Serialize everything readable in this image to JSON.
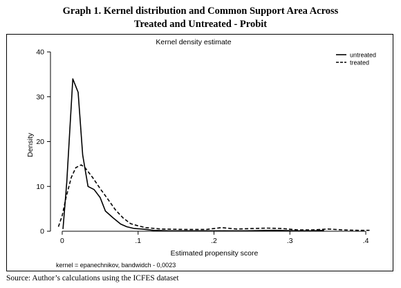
{
  "caption": {
    "line1": "Graph 1. Kernel distribution and Common Support Area Across",
    "line2": "Treated and Untreated - Probit"
  },
  "source": "Source: Author’s calculations using the ICFES dataset",
  "chart_data": {
    "type": "line",
    "title": "Kernel density estimate",
    "xlabel": "Estimated propensity score",
    "ylabel": "Density",
    "note": "kernel = epanechnikov, bandwidch - 0,0023",
    "xlim": [
      -0.01,
      0.42
    ],
    "ylim": [
      0,
      40
    ],
    "xticks": [
      0,
      0.1,
      0.2,
      0.3,
      0.4
    ],
    "xtick_labels": [
      "0",
      ".1",
      ".2",
      ".3",
      ".4"
    ],
    "yticks": [
      0,
      10,
      20,
      30,
      40
    ],
    "ytick_labels": [
      "0",
      "10",
      "20",
      "30",
      "40"
    ],
    "grid": false,
    "legend_position": "top-right",
    "series": [
      {
        "name": "untreated",
        "style": "solid",
        "color": "#000000",
        "x": [
          0.001,
          0.006,
          0.014,
          0.021,
          0.027,
          0.034,
          0.042,
          0.05,
          0.057,
          0.067,
          0.077,
          0.085,
          0.095,
          0.105,
          0.12,
          0.14,
          0.17,
          0.2,
          0.24,
          0.28,
          0.31,
          0.33,
          0.345
        ],
        "y": [
          0.5,
          11,
          34,
          31,
          17,
          10,
          9.3,
          7.5,
          4.5,
          3,
          1.6,
          1.0,
          0.6,
          0.5,
          0.2,
          0.1,
          0.1,
          0.1,
          0.1,
          0.2,
          0.1,
          0.1,
          0.2
        ]
      },
      {
        "name": "treated",
        "style": "dashed",
        "color": "#000000",
        "x": [
          -0.005,
          0.0,
          0.005,
          0.012,
          0.018,
          0.025,
          0.03,
          0.04,
          0.05,
          0.06,
          0.07,
          0.08,
          0.09,
          0.1,
          0.11,
          0.13,
          0.16,
          0.19,
          0.21,
          0.23,
          0.25,
          0.27,
          0.29,
          0.31,
          0.33,
          0.35,
          0.37,
          0.39,
          0.405
        ],
        "y": [
          1.0,
          3.5,
          7.5,
          12,
          14.2,
          14.8,
          14.2,
          12,
          9.5,
          7.2,
          4.8,
          3.0,
          1.7,
          1.2,
          0.8,
          0.5,
          0.4,
          0.4,
          0.8,
          0.5,
          0.6,
          0.7,
          0.6,
          0.3,
          0.3,
          0.5,
          0.3,
          0.2,
          0.2
        ]
      }
    ]
  }
}
